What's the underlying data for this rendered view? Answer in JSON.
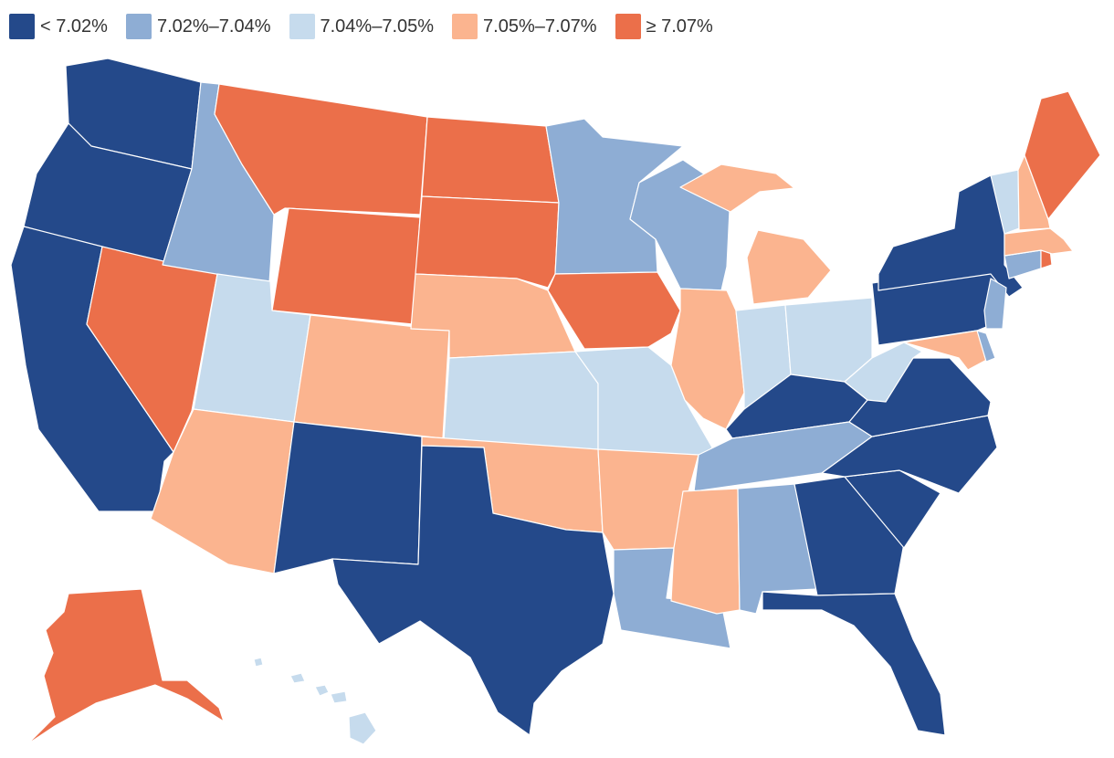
{
  "legend": {
    "items": [
      {
        "key": "c1",
        "label": "< 7.02%",
        "color": "#24498a"
      },
      {
        "key": "c2",
        "label": "7.02%–7.04%",
        "color": "#8eadd4"
      },
      {
        "key": "c3",
        "label": "7.04%–7.05%",
        "color": "#c6dbed"
      },
      {
        "key": "c4",
        "label": "7.05%–7.07%",
        "color": "#fbb48f"
      },
      {
        "key": "c5",
        "label": "≥ 7.07%",
        "color": "#eb6f4a"
      }
    ]
  },
  "states": [
    {
      "code": "WA",
      "name": "Washington",
      "class": "c1"
    },
    {
      "code": "OR",
      "name": "Oregon",
      "class": "c1"
    },
    {
      "code": "CA",
      "name": "California",
      "class": "c1"
    },
    {
      "code": "NV",
      "name": "Nevada",
      "class": "c5"
    },
    {
      "code": "ID",
      "name": "Idaho",
      "class": "c2"
    },
    {
      "code": "MT",
      "name": "Montana",
      "class": "c5"
    },
    {
      "code": "WY",
      "name": "Wyoming",
      "class": "c5"
    },
    {
      "code": "UT",
      "name": "Utah",
      "class": "c3"
    },
    {
      "code": "AZ",
      "name": "Arizona",
      "class": "c4"
    },
    {
      "code": "CO",
      "name": "Colorado",
      "class": "c4"
    },
    {
      "code": "NM",
      "name": "New Mexico",
      "class": "c1"
    },
    {
      "code": "ND",
      "name": "North Dakota",
      "class": "c5"
    },
    {
      "code": "SD",
      "name": "South Dakota",
      "class": "c5"
    },
    {
      "code": "NE",
      "name": "Nebraska",
      "class": "c4"
    },
    {
      "code": "KS",
      "name": "Kansas",
      "class": "c3"
    },
    {
      "code": "OK",
      "name": "Oklahoma",
      "class": "c4"
    },
    {
      "code": "TX",
      "name": "Texas",
      "class": "c1"
    },
    {
      "code": "MN",
      "name": "Minnesota",
      "class": "c2"
    },
    {
      "code": "IA",
      "name": "Iowa",
      "class": "c5"
    },
    {
      "code": "MO",
      "name": "Missouri",
      "class": "c3"
    },
    {
      "code": "AR",
      "name": "Arkansas",
      "class": "c4"
    },
    {
      "code": "LA",
      "name": "Louisiana",
      "class": "c2"
    },
    {
      "code": "WI",
      "name": "Wisconsin",
      "class": "c2"
    },
    {
      "code": "IL",
      "name": "Illinois",
      "class": "c4"
    },
    {
      "code": "MI",
      "name": "Michigan",
      "class": "c4"
    },
    {
      "code": "IN",
      "name": "Indiana",
      "class": "c3"
    },
    {
      "code": "OH",
      "name": "Ohio",
      "class": "c3"
    },
    {
      "code": "KY",
      "name": "Kentucky",
      "class": "c1"
    },
    {
      "code": "TN",
      "name": "Tennessee",
      "class": "c2"
    },
    {
      "code": "MS",
      "name": "Mississippi",
      "class": "c4"
    },
    {
      "code": "AL",
      "name": "Alabama",
      "class": "c2"
    },
    {
      "code": "GA",
      "name": "Georgia",
      "class": "c1"
    },
    {
      "code": "FL",
      "name": "Florida",
      "class": "c1"
    },
    {
      "code": "SC",
      "name": "South Carolina",
      "class": "c1"
    },
    {
      "code": "NC",
      "name": "North Carolina",
      "class": "c1"
    },
    {
      "code": "VA",
      "name": "Virginia",
      "class": "c1"
    },
    {
      "code": "WV",
      "name": "West Virginia",
      "class": "c3"
    },
    {
      "code": "PA",
      "name": "Pennsylvania",
      "class": "c1"
    },
    {
      "code": "NY",
      "name": "New York",
      "class": "c1"
    },
    {
      "code": "MD",
      "name": "Maryland",
      "class": "c4"
    },
    {
      "code": "DE",
      "name": "Delaware",
      "class": "c2"
    },
    {
      "code": "NJ",
      "name": "New Jersey",
      "class": "c2"
    },
    {
      "code": "CT",
      "name": "Connecticut",
      "class": "c2"
    },
    {
      "code": "RI",
      "name": "Rhode Island",
      "class": "c5"
    },
    {
      "code": "MA",
      "name": "Massachusetts",
      "class": "c4"
    },
    {
      "code": "VT",
      "name": "Vermont",
      "class": "c3"
    },
    {
      "code": "NH",
      "name": "New Hampshire",
      "class": "c4"
    },
    {
      "code": "ME",
      "name": "Maine",
      "class": "c5"
    },
    {
      "code": "AK",
      "name": "Alaska",
      "class": "c5"
    },
    {
      "code": "HI",
      "name": "Hawaii",
      "class": "c3"
    }
  ]
}
